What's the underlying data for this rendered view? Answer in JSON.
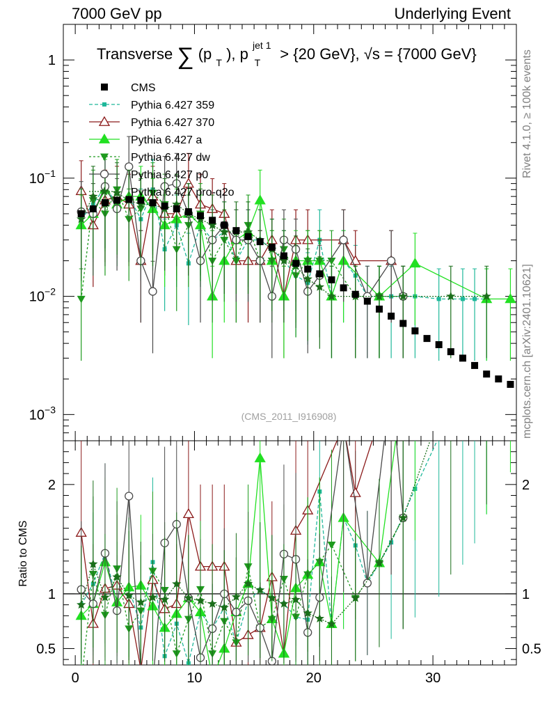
{
  "header": {
    "left": "7000 GeV pp",
    "right": "Underlying Event"
  },
  "side_labels": {
    "rivet": "Rivet 4.1.0, ≥ 100k events",
    "mcplots": "mcplots.cern.ch [arXiv:2401.10621]"
  },
  "plot": {
    "title": "Transverse ∑(pₜ), pₜʲᵉᵗ ¹ > {20 GeV}, √s = {7000 GeV}",
    "title_main": "Transverse",
    "title_sum": "∑",
    "title_paren_open": "(p",
    "title_sub1": "T",
    "title_paren_close": "), p",
    "title_sup": "jet 1",
    "title_sub2": "T",
    "title_rest": "> {20 GeV},",
    "title_sqrt": "√s",
    "title_energy": "= {7000 GeV}",
    "watermark": "(CMS_2011_I916908)",
    "ratio_ylabel": "Ratio to CMS"
  },
  "chart_data": {
    "type": "scatter",
    "title": "Transverse sum(pT), pT jet 1 > {20 GeV}, sqrt(s) = {7000 GeV}",
    "xlabel": "",
    "ylabel": "",
    "xlim": [
      -1,
      37
    ],
    "ylim": [
      0.0006,
      2.0
    ],
    "yscale": "log",
    "main_yticks": [
      {
        "value": 0.001,
        "label": "10^{-3}",
        "base": "10",
        "exp": "−3"
      },
      {
        "value": 0.01,
        "label": "10^{-2}",
        "base": "10",
        "exp": "−2"
      },
      {
        "value": 0.1,
        "label": "10^{-1}",
        "base": "10",
        "exp": "−1"
      },
      {
        "value": 1,
        "label": "1",
        "base": "1",
        "exp": ""
      }
    ],
    "xticks": [
      {
        "value": 0,
        "label": "0"
      },
      {
        "value": 10,
        "label": "10"
      },
      {
        "value": 20,
        "label": "20"
      },
      {
        "value": 30,
        "label": "30"
      }
    ],
    "ratio_ylim": [
      0.35,
      2.4
    ],
    "ratio_yticks": [
      {
        "value": 0.5,
        "label": "0.5"
      },
      {
        "value": 1,
        "label": "1"
      },
      {
        "value": 2,
        "label": "2"
      }
    ],
    "reference": {
      "name": "CMS",
      "x": [
        0.5,
        1.5,
        2.5,
        3.5,
        4.5,
        5.5,
        6.5,
        7.5,
        8.5,
        9.5,
        10.5,
        11.5,
        12.5,
        13.5,
        14.5,
        15.5,
        16.5,
        17.5,
        18.5,
        19.5,
        20.5,
        21.5,
        22.5,
        23.5,
        24.5,
        25.5,
        26.5,
        27.5,
        28.5,
        29.5,
        30.5,
        31.5,
        32.5,
        33.5,
        34.5,
        35.5,
        36.5
      ],
      "y": [
        0.05,
        0.055,
        0.062,
        0.065,
        0.066,
        0.065,
        0.062,
        0.058,
        0.055,
        0.052,
        0.048,
        0.044,
        0.04,
        0.036,
        0.032,
        0.029,
        0.026,
        0.022,
        0.019,
        0.017,
        0.0155,
        0.0138,
        0.0118,
        0.0104,
        0.0091,
        0.0078,
        0.0068,
        0.0059,
        0.0051,
        0.0044,
        0.0039,
        0.0034,
        0.003,
        0.0026,
        0.0022,
        0.002,
        0.0018
      ]
    },
    "legend": [
      "CMS",
      "Pythia 6.427 359",
      "Pythia 6.427 370",
      "Pythia 6.427 a",
      "Pythia 6.427 dw",
      "Pythia 6.427 p0",
      "Pythia 6.427 pro-q2o"
    ],
    "series": [
      {
        "name": "Pythia 6.427 359",
        "color": "#1fb89a",
        "marker": "square",
        "dash": "5,3",
        "points": [
          [
            0.5,
            0.045
          ],
          [
            1.5,
            0.06
          ],
          [
            2.5,
            0.085
          ],
          [
            3.5,
            0.06
          ],
          [
            4.5,
            0.07
          ],
          [
            5.5,
            0.045
          ],
          [
            6.5,
            0.08
          ],
          [
            7.5,
            0.025
          ],
          [
            8.5,
            0.04
          ],
          [
            9.5,
            0.019
          ],
          [
            10.5,
            0.04
          ],
          [
            11.5,
            0.03
          ],
          [
            12.5,
            0.035
          ],
          [
            13.5,
            0.02
          ],
          [
            14.5,
            0.03
          ],
          [
            15.5,
            0.03
          ],
          [
            16.5,
            0.025
          ],
          [
            17.5,
            0.02
          ],
          [
            18.5,
            0.015
          ],
          [
            19.5,
            0.013
          ],
          [
            20.5,
            0.03
          ],
          [
            21.5,
            0.01
          ],
          [
            22.5,
            0.02
          ],
          [
            23.5,
            0.015
          ],
          [
            24.5,
            0.01
          ],
          [
            25.5,
            0.01
          ],
          [
            26.5,
            0.01
          ],
          [
            28.5,
            0.01
          ],
          [
            30.5,
            0.0095
          ],
          [
            32.5,
            0.0095
          ],
          [
            33.5,
            0.0095
          ],
          [
            34.5,
            0.0095
          ]
        ]
      },
      {
        "name": "Pythia 6.427 370",
        "color": "#8b1a1a",
        "marker": "triangle-open",
        "dash": "",
        "points": [
          [
            0.5,
            0.078
          ],
          [
            1.5,
            0.04
          ],
          [
            2.5,
            0.065
          ],
          [
            3.5,
            0.07
          ],
          [
            4.5,
            0.06
          ],
          [
            5.5,
            0.02
          ],
          [
            6.5,
            0.07
          ],
          [
            7.5,
            0.05
          ],
          [
            8.5,
            0.05
          ],
          [
            9.5,
            0.09
          ],
          [
            10.5,
            0.06
          ],
          [
            11.5,
            0.055
          ],
          [
            12.5,
            0.05
          ],
          [
            13.5,
            0.02
          ],
          [
            14.5,
            0.02
          ],
          [
            15.5,
            0.02
          ],
          [
            16.5,
            0.03
          ],
          [
            17.5,
            0.01
          ],
          [
            18.5,
            0.03
          ],
          [
            19.5,
            0.03
          ],
          [
            22.5,
            0.03
          ],
          [
            23.5,
            0.02
          ],
          [
            26.5,
            0.02
          ]
        ]
      },
      {
        "name": "Pythia 6.427 a",
        "color": "#22e022",
        "marker": "triangle",
        "dash": "",
        "points": [
          [
            0.5,
            0.04
          ],
          [
            1.5,
            0.05
          ],
          [
            2.5,
            0.08
          ],
          [
            3.5,
            0.06
          ],
          [
            4.5,
            0.07
          ],
          [
            5.5,
            0.07
          ],
          [
            6.5,
            0.055
          ],
          [
            7.5,
            0.04
          ],
          [
            8.5,
            0.045
          ],
          [
            9.5,
            0.05
          ],
          [
            10.5,
            0.04
          ],
          [
            11.5,
            0.01
          ],
          [
            12.5,
            0.02
          ],
          [
            13.5,
            0.03
          ],
          [
            14.5,
            0.035
          ],
          [
            15.5,
            0.065
          ],
          [
            16.5,
            0.02
          ],
          [
            17.5,
            0.01
          ],
          [
            18.5,
            0.02
          ],
          [
            19.5,
            0.02
          ],
          [
            20.5,
            0.02
          ],
          [
            21.5,
            0.01
          ],
          [
            22.5,
            0.02
          ],
          [
            25.5,
            0.01
          ],
          [
            28.5,
            0.019
          ],
          [
            34.5,
            0.0095
          ],
          [
            36.5,
            0.0095
          ]
        ]
      },
      {
        "name": "Pythia 6.427 dw",
        "color": "#1e9a1e",
        "marker": "triangle-down",
        "dash": "3,3",
        "points": [
          [
            0.5,
            0.0095
          ],
          [
            1.5,
            0.065
          ],
          [
            2.5,
            0.05
          ],
          [
            3.5,
            0.08
          ],
          [
            4.5,
            0.045
          ],
          [
            5.5,
            0.055
          ],
          [
            6.5,
            0.075
          ],
          [
            7.5,
            0.06
          ],
          [
            8.5,
            0.025
          ],
          [
            9.5,
            0.04
          ],
          [
            10.5,
            0.05
          ],
          [
            11.5,
            0.02
          ],
          [
            12.5,
            0.03
          ],
          [
            13.5,
            0.02
          ],
          [
            14.5,
            0.04
          ],
          [
            15.5,
            0.02
          ],
          [
            16.5,
            0.02
          ],
          [
            17.5,
            0.025
          ],
          [
            18.5,
            0.015
          ],
          [
            19.5,
            0.02
          ],
          [
            20.5,
            0.02
          ],
          [
            21.5,
            0.02
          ],
          [
            23.5,
            0.01
          ],
          [
            25.5,
            0.01
          ],
          [
            27.5,
            0.01
          ]
        ]
      },
      {
        "name": "Pythia 6.427 p0",
        "color": "#4a4a4a",
        "marker": "circle-open",
        "dash": "",
        "points": [
          [
            0.5,
            0.052
          ],
          [
            1.5,
            0.05
          ],
          [
            2.5,
            0.085
          ],
          [
            3.5,
            0.055
          ],
          [
            4.5,
            0.125
          ],
          [
            5.5,
            0.02
          ],
          [
            6.5,
            0.011
          ],
          [
            7.5,
            0.085
          ],
          [
            8.5,
            0.09
          ],
          [
            9.5,
            0.05
          ],
          [
            10.5,
            0.02
          ],
          [
            11.5,
            0.03
          ],
          [
            12.5,
            0.04
          ],
          [
            13.5,
            0.03
          ],
          [
            14.5,
            0.03
          ],
          [
            15.5,
            0.02
          ],
          [
            16.5,
            0.01
          ],
          [
            17.5,
            0.03
          ],
          [
            18.5,
            0.025
          ],
          [
            19.5,
            0.011
          ],
          [
            20.5,
            0.015
          ],
          [
            22.5,
            0.03
          ],
          [
            24.5,
            0.01
          ],
          [
            26.5,
            0.02
          ],
          [
            27.5,
            0.01
          ]
        ]
      },
      {
        "name": "Pythia 6.427 pro-q2o",
        "color": "#1a6e1a",
        "marker": "star",
        "dash": "2,2",
        "points": [
          [
            0.5,
            0.045
          ],
          [
            1.5,
            0.07
          ],
          [
            2.5,
            0.06
          ],
          [
            3.5,
            0.075
          ],
          [
            4.5,
            0.065
          ],
          [
            5.5,
            0.06
          ],
          [
            6.5,
            0.06
          ],
          [
            7.5,
            0.055
          ],
          [
            8.5,
            0.06
          ],
          [
            9.5,
            0.05
          ],
          [
            10.5,
            0.045
          ],
          [
            11.5,
            0.04
          ],
          [
            12.5,
            0.035
          ],
          [
            13.5,
            0.035
          ],
          [
            14.5,
            0.035
          ],
          [
            15.5,
            0.03
          ],
          [
            16.5,
            0.025
          ],
          [
            17.5,
            0.02
          ],
          [
            18.5,
            0.018
          ],
          [
            19.5,
            0.014
          ],
          [
            20.5,
            0.012
          ],
          [
            21.5,
            0.01
          ],
          [
            23.5,
            0.01
          ],
          [
            25.5,
            0.01
          ],
          [
            27.5,
            0.01
          ],
          [
            31.5,
            0.01
          ],
          [
            34.5,
            0.01
          ]
        ]
      }
    ]
  }
}
